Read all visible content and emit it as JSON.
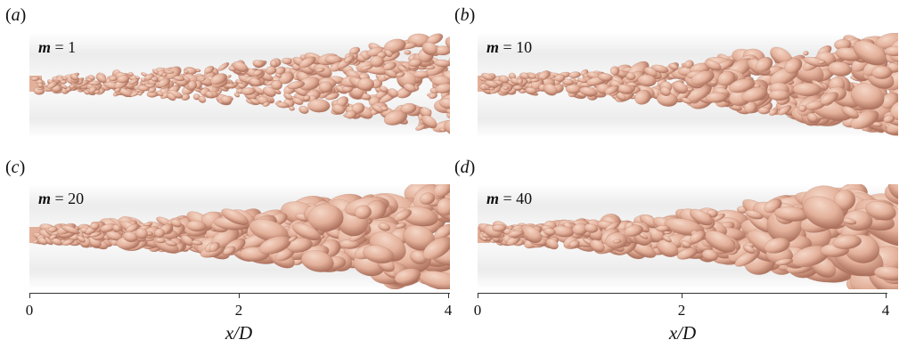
{
  "figure": {
    "panels": [
      {
        "label": "(a)",
        "letter": "a",
        "m_symbol": "m",
        "m_value": "= 1",
        "scale": 0.55
      },
      {
        "label": "(b)",
        "letter": "b",
        "m_symbol": "m",
        "m_value": "= 10",
        "scale": 0.8
      },
      {
        "label": "(c)",
        "letter": "c",
        "m_symbol": "m",
        "m_value": "= 20",
        "scale": 1.05
      },
      {
        "label": "(d)",
        "letter": "d",
        "m_symbol": "m",
        "m_value": "= 40",
        "scale": 1.15
      }
    ],
    "axis": {
      "title": "x/D",
      "ticks": [
        "0",
        "2",
        "4"
      ],
      "tick_values": [
        0,
        2,
        4
      ],
      "range": [
        0,
        4
      ]
    },
    "colors": {
      "structure_base": "#e3b09a",
      "structure_light": "#f4d6c6",
      "structure_dark": "#a86c58"
    }
  }
}
